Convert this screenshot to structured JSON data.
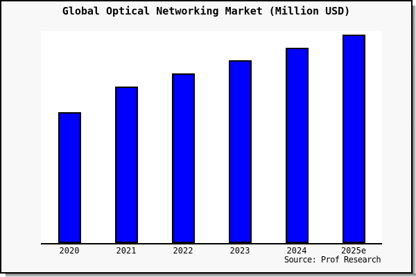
{
  "title": "Global Optical Networking Market (Million USD)",
  "source_note": "Source: Prof Research",
  "colors": {
    "bar_fill": "#0000ff",
    "bar_border": "#000000",
    "frame_background": "#f8f8f8",
    "plot_background": "#ffffff",
    "axis_line": "#000000",
    "frame_border": "#000000",
    "shadow": "#6f6f6f"
  },
  "chart_data": {
    "type": "bar",
    "title": "Global Optical Networking Market (Million USD)",
    "categories": [
      "2020",
      "2021",
      "2022",
      "2023",
      "2024",
      "2025e"
    ],
    "values": [
      62.8,
      75.1,
      81.4,
      87.7,
      93.7,
      100
    ],
    "value_scale": "relative units, tallest bar (2025e) = 100; y-axis shows no ticks or labels in the chart",
    "xlabel": "",
    "ylabel": "",
    "ylim": [
      0,
      101.7
    ],
    "grid": false,
    "legend": false,
    "annotations": [
      "Source: Prof Research"
    ]
  }
}
